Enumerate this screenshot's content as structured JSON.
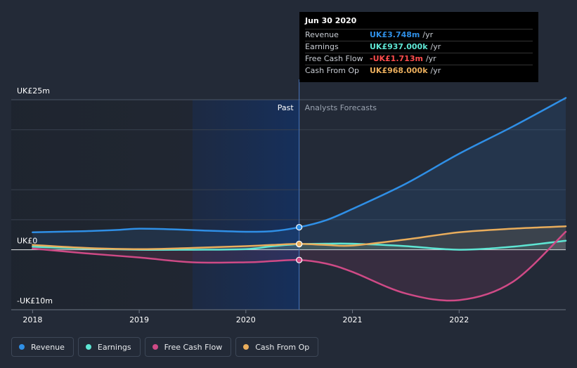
{
  "chart_data": {
    "type": "line",
    "y_ticks": [
      {
        "value": 25,
        "label": "UK£25m"
      },
      {
        "value": 0,
        "label": "UK£0"
      },
      {
        "value": -10,
        "label": "-UK£10m"
      }
    ],
    "x_ticks": [
      {
        "value": 2018,
        "label": "2018"
      },
      {
        "value": 2019,
        "label": "2019"
      },
      {
        "value": 2020,
        "label": "2020"
      },
      {
        "value": 2021,
        "label": "2021"
      },
      {
        "value": 2022,
        "label": "2022"
      }
    ],
    "xlim": [
      2017.8,
      2023.0
    ],
    "ylim": [
      -10,
      25
    ],
    "past_label": "Past",
    "forecast_label": "Analysts Forecasts",
    "past_end": 2020.5,
    "highlight_start": 2019.5,
    "series": [
      {
        "name": "Revenue",
        "color": "#2f8fe6",
        "points": [
          [
            2018.0,
            2.9
          ],
          [
            2018.5,
            3.1
          ],
          [
            2018.8,
            3.3
          ],
          [
            2019.0,
            3.5
          ],
          [
            2019.3,
            3.4
          ],
          [
            2019.6,
            3.2
          ],
          [
            2020.0,
            3.0
          ],
          [
            2020.25,
            3.1
          ],
          [
            2020.5,
            3.748
          ],
          [
            2020.75,
            4.9
          ],
          [
            2021.0,
            6.8
          ],
          [
            2021.5,
            11.0
          ],
          [
            2022.0,
            16.0
          ],
          [
            2022.5,
            20.5
          ],
          [
            2023.0,
            25.3
          ]
        ]
      },
      {
        "name": "Earnings",
        "color": "#5ee6d4",
        "points": [
          [
            2018.0,
            0.5
          ],
          [
            2018.5,
            0.2
          ],
          [
            2019.0,
            0.0
          ],
          [
            2019.5,
            0.0
          ],
          [
            2020.0,
            0.1
          ],
          [
            2020.25,
            0.6
          ],
          [
            2020.5,
            0.937
          ],
          [
            2020.75,
            1.0
          ],
          [
            2021.0,
            1.0
          ],
          [
            2021.5,
            0.6
          ],
          [
            2022.0,
            0.0
          ],
          [
            2022.5,
            0.5
          ],
          [
            2023.0,
            1.5
          ]
        ]
      },
      {
        "name": "Free Cash Flow",
        "color": "#cf4a86",
        "points": [
          [
            2018.0,
            0.2
          ],
          [
            2018.5,
            -0.6
          ],
          [
            2019.0,
            -1.3
          ],
          [
            2019.5,
            -2.1
          ],
          [
            2020.0,
            -2.1
          ],
          [
            2020.25,
            -1.9
          ],
          [
            2020.5,
            -1.713
          ],
          [
            2020.75,
            -2.3
          ],
          [
            2021.0,
            -3.7
          ],
          [
            2021.5,
            -7.3
          ],
          [
            2022.0,
            -8.4
          ],
          [
            2022.5,
            -5.4
          ],
          [
            2023.0,
            3.0
          ]
        ]
      },
      {
        "name": "Cash From Op",
        "color": "#e9ad5c",
        "points": [
          [
            2018.0,
            0.8
          ],
          [
            2018.5,
            0.3
          ],
          [
            2019.0,
            0.1
          ],
          [
            2019.5,
            0.3
          ],
          [
            2020.0,
            0.6
          ],
          [
            2020.25,
            0.8
          ],
          [
            2020.5,
            0.968
          ],
          [
            2020.75,
            0.8
          ],
          [
            2021.0,
            0.7
          ],
          [
            2021.5,
            1.7
          ],
          [
            2022.0,
            2.9
          ],
          [
            2022.5,
            3.5
          ],
          [
            2023.0,
            3.9
          ]
        ]
      }
    ],
    "highlight_x": 2020.5
  },
  "tooltip": {
    "title": "Jun 30 2020",
    "rows": [
      {
        "name": "Revenue",
        "value": "UK£3.748m",
        "unit": "/yr",
        "color": "#2f8fe6"
      },
      {
        "name": "Earnings",
        "value": "UK£937.000k",
        "unit": "/yr",
        "color": "#5ee6d4"
      },
      {
        "name": "Free Cash Flow",
        "value": "-UK£1.713m",
        "unit": "/yr",
        "color": "#ff4d4d"
      },
      {
        "name": "Cash From Op",
        "value": "UK£968.000k",
        "unit": "/yr",
        "color": "#e9ad5c"
      }
    ]
  },
  "legend": [
    {
      "label": "Revenue",
      "color": "#2f8fe6"
    },
    {
      "label": "Earnings",
      "color": "#5ee6d4"
    },
    {
      "label": "Free Cash Flow",
      "color": "#cf4a86"
    },
    {
      "label": "Cash From Op",
      "color": "#e9ad5c"
    }
  ]
}
